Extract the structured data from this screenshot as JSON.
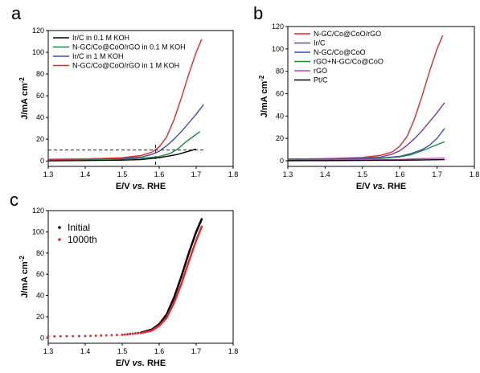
{
  "chart_data": [
    {
      "panel": "a",
      "type": "line",
      "xlabel_prefix": "E/V ",
      "xlabel_italic": "vs.",
      "xlabel_suffix": " RHE",
      "ylabel": "J/mA cm",
      "ylabel_sup": "-2",
      "xlim": [
        1.3,
        1.8
      ],
      "ylim": [
        -5,
        120
      ],
      "xticks": [
        1.3,
        1.4,
        1.5,
        1.6,
        1.7,
        1.8
      ],
      "yticks": [
        0,
        20,
        40,
        60,
        80,
        100,
        120
      ],
      "legend_loc": "top-left",
      "annotation": {
        "dashed_hline_y": 10,
        "dashed_vline_x": 1.59
      },
      "series": [
        {
          "name": "Ir/C in 0.1 M KOH",
          "color": "#000000",
          "x": [
            1.3,
            1.4,
            1.5,
            1.55,
            1.6,
            1.65,
            1.68,
            1.7
          ],
          "y": [
            0.2,
            0.4,
            0.8,
            1.2,
            3,
            6,
            9,
            11
          ]
        },
        {
          "name": "N-GC/Co@CoO/rGO in 0.1 M KOH",
          "color": "#1a8a3c",
          "x": [
            1.3,
            1.4,
            1.5,
            1.55,
            1.6,
            1.63,
            1.65,
            1.67,
            1.69,
            1.71
          ],
          "y": [
            1,
            1.3,
            1.8,
            2.5,
            4,
            7,
            11,
            17,
            22,
            27
          ]
        },
        {
          "name": "Ir/C in 1 M KOH",
          "color": "#3d4fb5",
          "x": [
            1.3,
            1.4,
            1.5,
            1.55,
            1.58,
            1.6,
            1.62,
            1.64,
            1.66,
            1.68,
            1.7,
            1.72
          ],
          "y": [
            1.5,
            1.8,
            2.5,
            3.5,
            6,
            9,
            14,
            20,
            27,
            35,
            43,
            52
          ]
        },
        {
          "name": "N-GC/Co@CoO/rGO in 1 M KOH",
          "color": "#e8262b",
          "x": [
            1.3,
            1.4,
            1.5,
            1.55,
            1.58,
            1.6,
            1.62,
            1.64,
            1.66,
            1.68,
            1.7,
            1.715
          ],
          "y": [
            1.5,
            1.8,
            3,
            5,
            8,
            13,
            22,
            38,
            58,
            80,
            100,
            112
          ]
        }
      ]
    },
    {
      "panel": "b",
      "type": "line",
      "xlabel_prefix": "E/V ",
      "xlabel_italic": "vs.",
      "xlabel_suffix": " RHE",
      "ylabel": "J/mA cm",
      "ylabel_sup": "-2",
      "xlim": [
        1.3,
        1.8
      ],
      "ylim": [
        -5,
        120
      ],
      "xticks": [
        1.3,
        1.4,
        1.5,
        1.6,
        1.7,
        1.8
      ],
      "yticks": [
        0,
        20,
        40,
        60,
        80,
        100,
        120
      ],
      "legend_loc": "top-left",
      "series": [
        {
          "name": "N-GC/Co@CoO/rGO",
          "color": "#e8262b",
          "x": [
            1.3,
            1.4,
            1.5,
            1.55,
            1.58,
            1.6,
            1.62,
            1.64,
            1.66,
            1.68,
            1.7,
            1.715
          ],
          "y": [
            1.5,
            1.8,
            3,
            5,
            8,
            13,
            22,
            38,
            58,
            80,
            100,
            112
          ]
        },
        {
          "name": "Ir/C",
          "color": "#7a3aa8",
          "x": [
            1.3,
            1.4,
            1.5,
            1.55,
            1.58,
            1.6,
            1.62,
            1.64,
            1.66,
            1.68,
            1.7,
            1.72
          ],
          "y": [
            1.5,
            1.8,
            2.5,
            3.5,
            6,
            9,
            14,
            20,
            27,
            35,
            43,
            52
          ]
        },
        {
          "name": "N-GC/Co@CoO",
          "color": "#3d4fb5",
          "x": [
            1.3,
            1.4,
            1.5,
            1.55,
            1.6,
            1.63,
            1.66,
            1.68,
            1.7,
            1.72
          ],
          "y": [
            1.2,
            1.5,
            2,
            2.5,
            4,
            6.5,
            10,
            14,
            20,
            29
          ]
        },
        {
          "name": "rGO+N-GC/Co@CoO",
          "color": "#1a8a3c",
          "x": [
            1.3,
            1.4,
            1.5,
            1.55,
            1.6,
            1.63,
            1.66,
            1.69,
            1.72
          ],
          "y": [
            1.2,
            1.4,
            1.8,
            2.2,
            3.5,
            5.5,
            9,
            13,
            17
          ]
        },
        {
          "name": "rGO",
          "color": "#c043c0",
          "x": [
            1.3,
            1.4,
            1.5,
            1.6,
            1.65,
            1.72
          ],
          "y": [
            0.5,
            0.6,
            0.8,
            1.2,
            1.8,
            2.5
          ]
        },
        {
          "name": "Pt/C",
          "color": "#000000",
          "x": [
            1.3,
            1.4,
            1.5,
            1.6,
            1.65,
            1.72
          ],
          "y": [
            0.1,
            0.2,
            0.3,
            0.5,
            0.7,
            1
          ]
        }
      ]
    },
    {
      "panel": "c",
      "type": "scatter",
      "xlabel_prefix": "E/V ",
      "xlabel_italic": "vs.",
      "xlabel_suffix": " RHE",
      "ylabel": "J/mA cm",
      "ylabel_sup": "-2",
      "xlim": [
        1.3,
        1.8
      ],
      "ylim": [
        -5,
        120
      ],
      "xticks": [
        1.3,
        1.4,
        1.5,
        1.6,
        1.7,
        1.8
      ],
      "yticks": [
        0,
        20,
        40,
        60,
        80,
        100,
        120
      ],
      "legend_loc": "top-left",
      "series": [
        {
          "name": "Initial",
          "color": "#000000",
          "x": [
            1.3,
            1.4,
            1.5,
            1.55,
            1.58,
            1.6,
            1.62,
            1.64,
            1.66,
            1.68,
            1.7,
            1.715
          ],
          "y": [
            1.5,
            1.8,
            3,
            5,
            8,
            13,
            22,
            38,
            58,
            80,
            100,
            112
          ]
        },
        {
          "name": "1000th",
          "color": "#e8262b",
          "x": [
            1.3,
            1.4,
            1.5,
            1.55,
            1.58,
            1.6,
            1.62,
            1.64,
            1.66,
            1.68,
            1.7,
            1.715
          ],
          "y": [
            1.5,
            1.8,
            2.8,
            4.5,
            7,
            11.5,
            19,
            33,
            51,
            72,
            92,
            105
          ]
        }
      ]
    }
  ]
}
